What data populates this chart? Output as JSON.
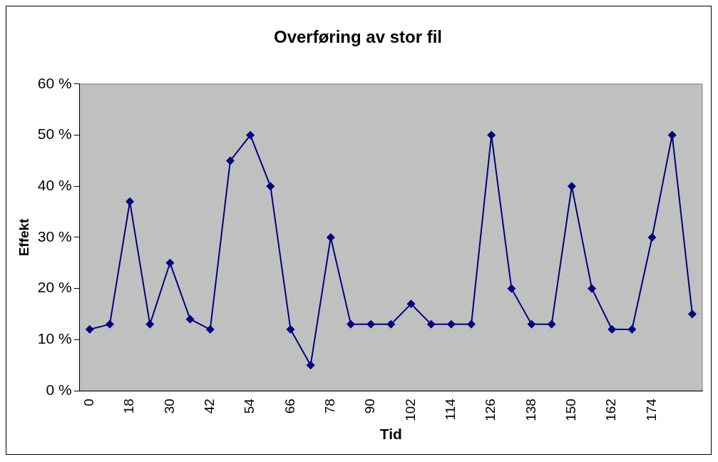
{
  "chart_data": {
    "type": "line",
    "title": "Overføring av stor fil",
    "xlabel": "Tid",
    "ylabel": "Effekt",
    "categories": [
      "0",
      null,
      "18",
      null,
      "30",
      null,
      "42",
      null,
      "54",
      null,
      "66",
      null,
      "78",
      null,
      "90",
      null,
      "102",
      null,
      "114",
      null,
      "126",
      null,
      "138",
      null,
      "150",
      null,
      "162",
      null,
      "174",
      null,
      null
    ],
    "series": [
      {
        "color": "#000080",
        "values": [
          12,
          13,
          37,
          13,
          25,
          14,
          12,
          45,
          50,
          40,
          12,
          5,
          30,
          13,
          13,
          13,
          17,
          13,
          13,
          13,
          50,
          20,
          13,
          13,
          40,
          20,
          12,
          12,
          30,
          50,
          15
        ]
      }
    ],
    "ylim": [
      0,
      60
    ],
    "yticks": [
      {
        "value": 0,
        "label": "0 %"
      },
      {
        "value": 10,
        "label": "10 %"
      },
      {
        "value": 20,
        "label": "20 %"
      },
      {
        "value": 30,
        "label": "30 %"
      },
      {
        "value": 40,
        "label": "40 %"
      },
      {
        "value": 50,
        "label": "50 %"
      },
      {
        "value": 60,
        "label": "60 %"
      }
    ],
    "legend": false,
    "marker": "diamond",
    "line_style": "solid"
  }
}
